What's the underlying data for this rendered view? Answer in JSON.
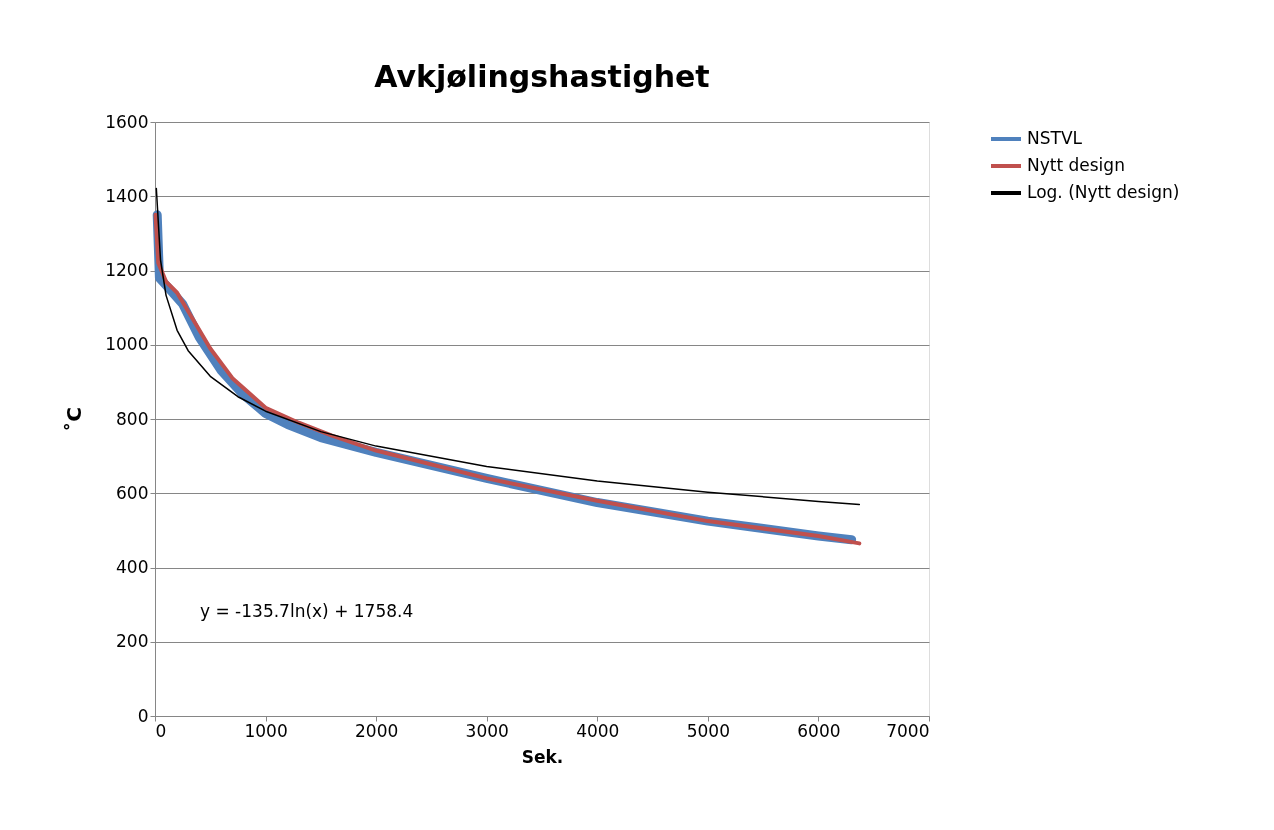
{
  "chart_data": {
    "type": "line",
    "title": "Avkjølingshastighet",
    "xlabel": "Sek.",
    "ylabel": "˚C",
    "xlim": [
      0,
      7000
    ],
    "xticks": [
      0,
      1000,
      2000,
      3000,
      4000,
      5000,
      6000,
      7000
    ],
    "ylim": [
      0,
      1600
    ],
    "yticks": [
      0,
      200,
      400,
      600,
      800,
      1000,
      1200,
      1400,
      1600
    ],
    "grid": "y",
    "legend": "right",
    "marker": "none",
    "line_style": "solid",
    "annotations": [
      "y = -135.7ln(x) + 1758.4"
    ],
    "series": [
      {
        "name": "NSTVL",
        "color": "#4f81bd",
        "x": [
          20,
          40,
          100,
          250,
          400,
          600,
          800,
          1000,
          1200,
          1500,
          2000,
          3000,
          4000,
          5000,
          6000,
          6300
        ],
        "values": [
          1350,
          1180,
          1160,
          1110,
          1020,
          930,
          865,
          815,
          785,
          750,
          710,
          640,
          575,
          525,
          485,
          475
        ]
      },
      {
        "name": "Nytt design",
        "color": "#c0504d",
        "x": [
          5,
          30,
          100,
          200,
          300,
          500,
          700,
          1000,
          1300,
          1600,
          2000,
          3000,
          4000,
          5000,
          6000,
          6370
        ],
        "values": [
          1350,
          1220,
          1170,
          1140,
          1090,
          990,
          910,
          830,
          790,
          755,
          715,
          640,
          580,
          525,
          485,
          465
        ]
      },
      {
        "name": "Log. (Nytt design)",
        "color": "#000000",
        "x": [
          12,
          50,
          100,
          200,
          300,
          500,
          750,
          1000,
          1500,
          2000,
          3000,
          4000,
          5000,
          6000,
          6370
        ],
        "values": [
          1421,
          1228,
          1133,
          1039,
          984,
          915,
          860,
          821,
          766,
          727,
          672,
          633,
          603,
          578,
          570
        ]
      }
    ]
  }
}
